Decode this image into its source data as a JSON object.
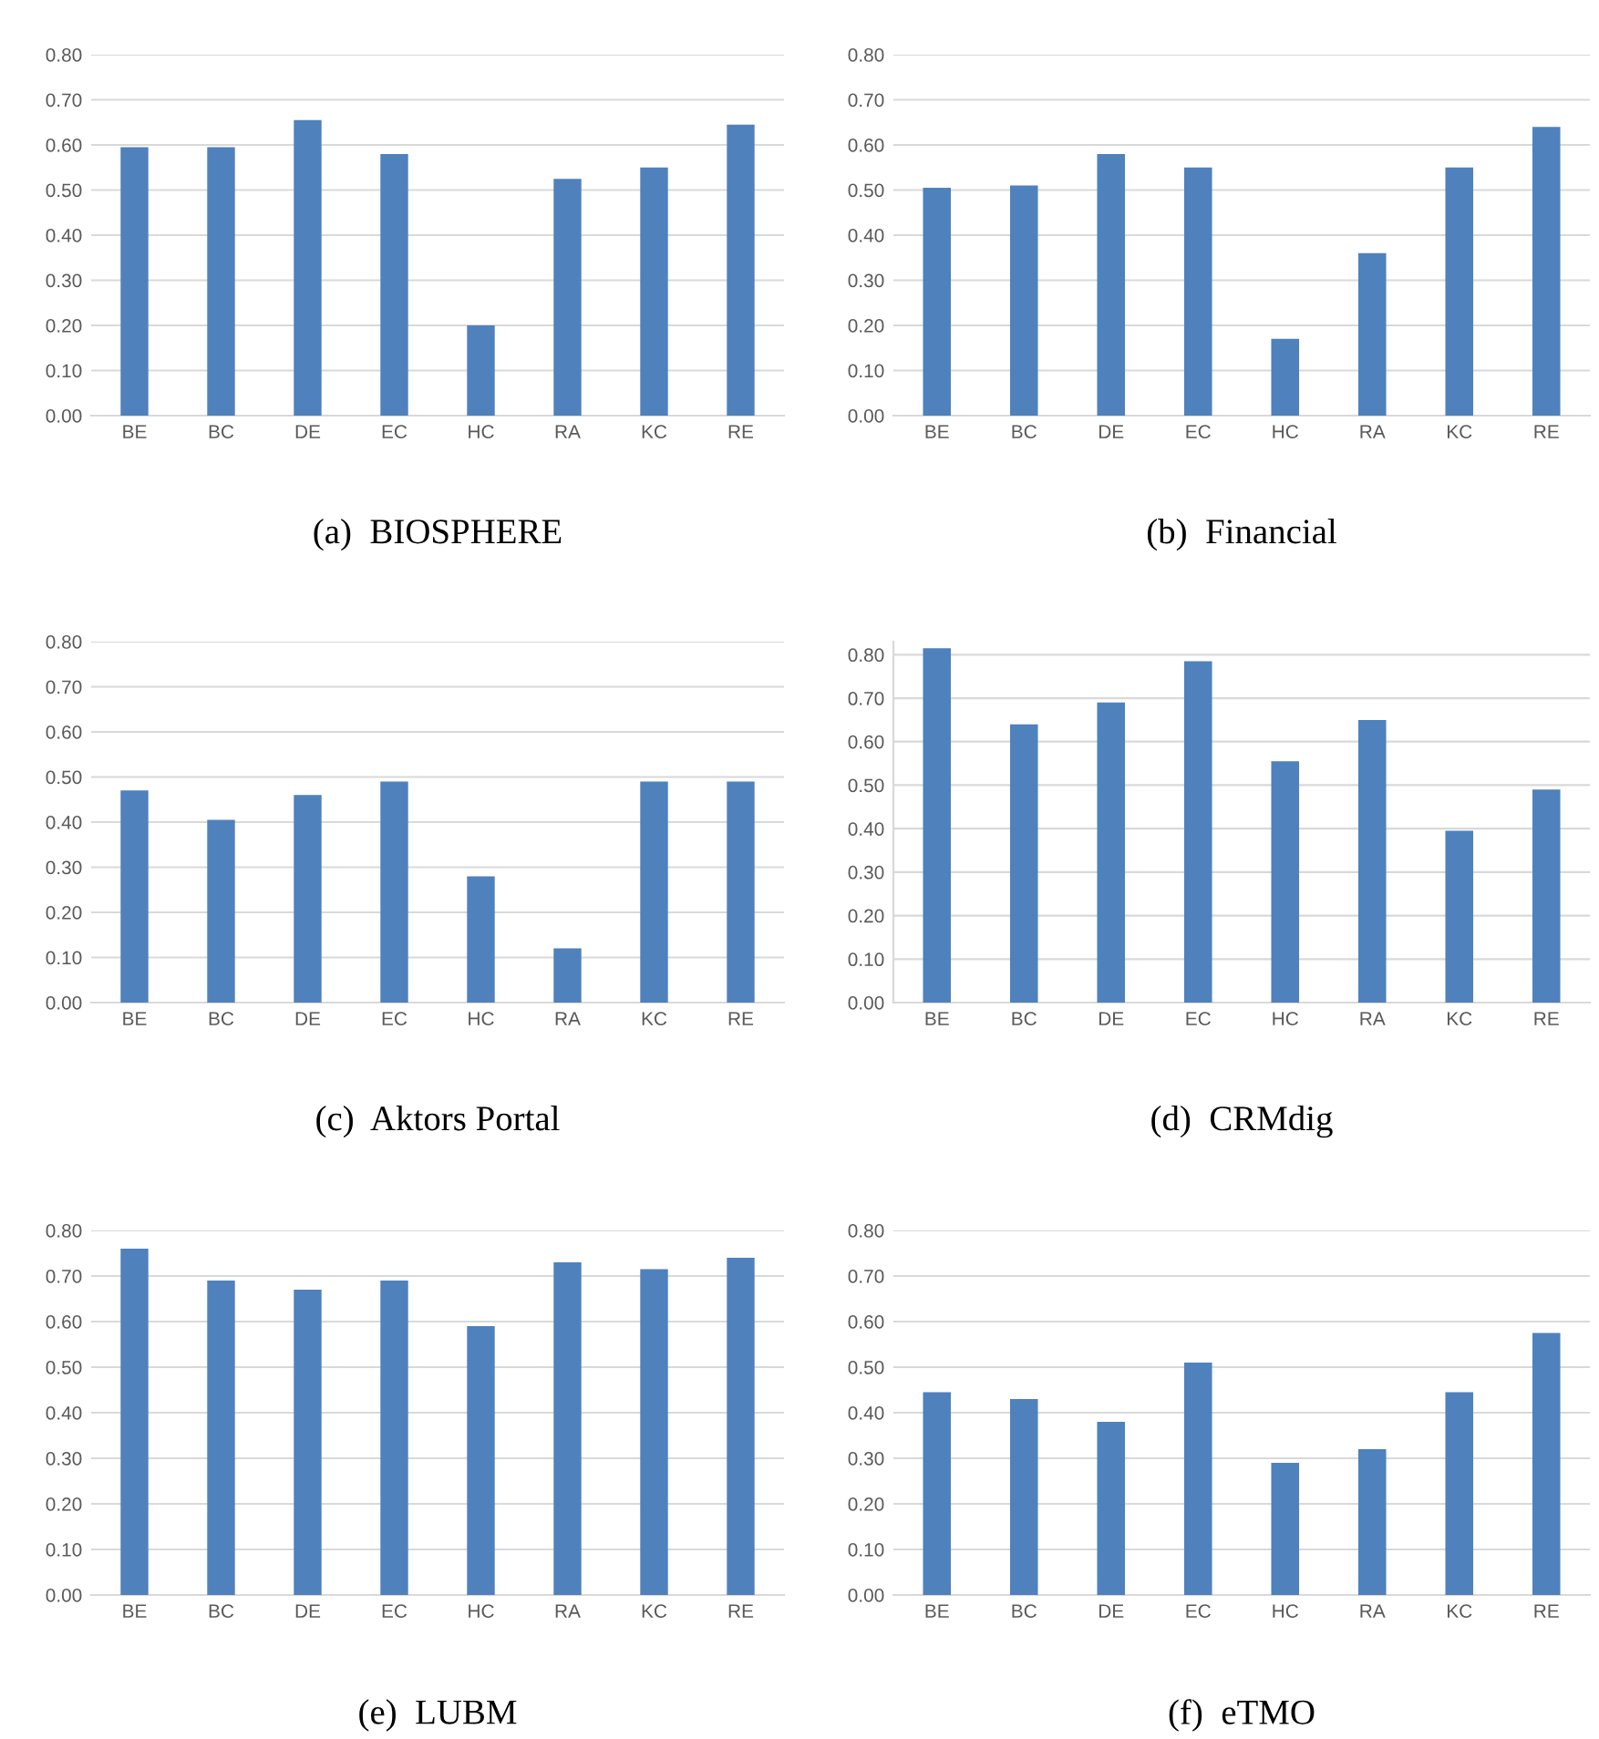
{
  "chart_data": [
    {
      "type": "bar",
      "title": "(a)  BIOSPHERE",
      "categories": [
        "BE",
        "BC",
        "DE",
        "EC",
        "HC",
        "RA",
        "KC",
        "RE"
      ],
      "values": [
        0.595,
        0.595,
        0.655,
        0.58,
        0.2,
        0.525,
        0.55,
        0.645
      ],
      "color": "#4f81bd",
      "ylim": [
        0,
        0.8
      ],
      "yticks": [
        {
          "value": 0,
          "label": "0.00"
        },
        {
          "value": 0.1,
          "label": "0.10"
        },
        {
          "value": 0.2,
          "label": "0.20"
        },
        {
          "value": 0.3,
          "label": "0.30"
        },
        {
          "value": 0.4,
          "label": "0.40"
        },
        {
          "value": 0.5,
          "label": "0.50"
        },
        {
          "value": 0.6,
          "label": "0.60"
        },
        {
          "value": 0.7,
          "label": "0.70"
        },
        {
          "value": 0.8,
          "label": "0.80"
        }
      ],
      "grid": "y"
    },
    {
      "type": "bar",
      "title": "(b)  Financial",
      "categories": [
        "BE",
        "BC",
        "DE",
        "EC",
        "HC",
        "RA",
        "KC",
        "RE"
      ],
      "values": [
        0.505,
        0.51,
        0.58,
        0.55,
        0.17,
        0.36,
        0.55,
        0.64
      ],
      "color": "#4f81bd",
      "ylim": [
        0,
        0.8
      ],
      "yticks": [
        {
          "value": 0,
          "label": "0.00"
        },
        {
          "value": 0.1,
          "label": "0.10"
        },
        {
          "value": 0.2,
          "label": "0.20"
        },
        {
          "value": 0.3,
          "label": "0.30"
        },
        {
          "value": 0.4,
          "label": "0.40"
        },
        {
          "value": 0.5,
          "label": "0.50"
        },
        {
          "value": 0.6,
          "label": "0.60"
        },
        {
          "value": 0.7,
          "label": "0.70"
        },
        {
          "value": 0.8,
          "label": "0.80"
        }
      ],
      "grid": "y"
    },
    {
      "type": "bar",
      "title": "(c)  Aktors Portal",
      "categories": [
        "BE",
        "BC",
        "DE",
        "EC",
        "HC",
        "RA",
        "KC",
        "RE"
      ],
      "values": [
        0.47,
        0.405,
        0.46,
        0.49,
        0.28,
        0.12,
        0.49,
        0.49
      ],
      "color": "#4f81bd",
      "ylim": [
        0,
        0.8
      ],
      "yticks": [
        {
          "value": 0,
          "label": "0.00"
        },
        {
          "value": 0.1,
          "label": "0.10"
        },
        {
          "value": 0.2,
          "label": "0.20"
        },
        {
          "value": 0.3,
          "label": "0.30"
        },
        {
          "value": 0.4,
          "label": "0.40"
        },
        {
          "value": 0.5,
          "label": "0.50"
        },
        {
          "value": 0.6,
          "label": "0.60"
        },
        {
          "value": 0.7,
          "label": "0.70"
        },
        {
          "value": 0.8,
          "label": "0.80"
        }
      ],
      "grid": "y"
    },
    {
      "type": "bar",
      "title": "(d)  CRMdig",
      "categories": [
        "BE",
        "BC",
        "DE",
        "EC",
        "HC",
        "RA",
        "KC",
        "RE"
      ],
      "values": [
        0.815,
        0.64,
        0.69,
        0.785,
        0.555,
        0.65,
        0.395,
        0.49
      ],
      "color": "#4f81bd",
      "ylim": [
        0,
        0.83
      ],
      "yticks": [
        {
          "value": 0,
          "label": "0.00"
        },
        {
          "value": 0.1,
          "label": "0.10"
        },
        {
          "value": 0.2,
          "label": "0.20"
        },
        {
          "value": 0.3,
          "label": "0.30"
        },
        {
          "value": 0.4,
          "label": "0.40"
        },
        {
          "value": 0.5,
          "label": "0.50"
        },
        {
          "value": 0.6,
          "label": "0.60"
        },
        {
          "value": 0.7,
          "label": "0.70"
        },
        {
          "value": 0.8,
          "label": "0.80"
        }
      ],
      "grid": "y"
    },
    {
      "type": "bar",
      "title": "(e)  LUBM",
      "categories": [
        "BE",
        "BC",
        "DE",
        "EC",
        "HC",
        "RA",
        "KC",
        "RE"
      ],
      "values": [
        0.76,
        0.69,
        0.67,
        0.69,
        0.59,
        0.73,
        0.715,
        0.74
      ],
      "color": "#4f81bd",
      "ylim": [
        0,
        0.8
      ],
      "yticks": [
        {
          "value": 0,
          "label": "0.00"
        },
        {
          "value": 0.1,
          "label": "0.10"
        },
        {
          "value": 0.2,
          "label": "0.20"
        },
        {
          "value": 0.3,
          "label": "0.30"
        },
        {
          "value": 0.4,
          "label": "0.40"
        },
        {
          "value": 0.5,
          "label": "0.50"
        },
        {
          "value": 0.6,
          "label": "0.60"
        },
        {
          "value": 0.7,
          "label": "0.70"
        },
        {
          "value": 0.8,
          "label": "0.80"
        }
      ],
      "grid": "y"
    },
    {
      "type": "bar",
      "title": "(f)  eTMO",
      "categories": [
        "BE",
        "BC",
        "DE",
        "EC",
        "HC",
        "RA",
        "KC",
        "RE"
      ],
      "values": [
        0.445,
        0.43,
        0.38,
        0.51,
        0.29,
        0.32,
        0.445,
        0.575
      ],
      "color": "#4f81bd",
      "ylim": [
        0,
        0.8
      ],
      "yticks": [
        {
          "value": 0,
          "label": "0.00"
        },
        {
          "value": 0.1,
          "label": "0.10"
        },
        {
          "value": 0.2,
          "label": "0.20"
        },
        {
          "value": 0.3,
          "label": "0.30"
        },
        {
          "value": 0.4,
          "label": "0.40"
        },
        {
          "value": 0.5,
          "label": "0.50"
        },
        {
          "value": 0.6,
          "label": "0.60"
        },
        {
          "value": 0.7,
          "label": "0.70"
        },
        {
          "value": 0.8,
          "label": "0.80"
        }
      ],
      "grid": "y"
    }
  ]
}
